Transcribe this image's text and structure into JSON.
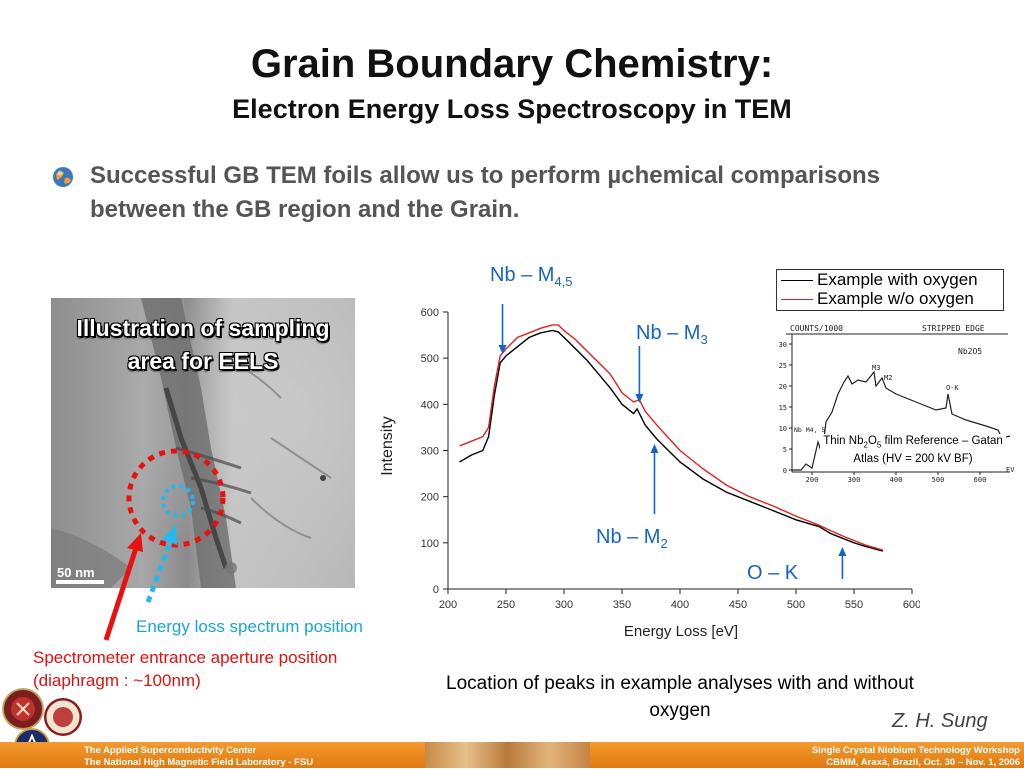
{
  "slide": {
    "title": "Grain Boundary Chemistry:",
    "subtitle": "Electron Energy Loss Spectroscopy in TEM",
    "bullet": "Successful  GB TEM foils allow us to perform µchemical comparisons between the GB region and the Grain."
  },
  "tem_image": {
    "caption": "Illustration of sampling area for EELS",
    "scale_bar": "50 nm",
    "energy_note": "Energy loss spectrum position",
    "aperture_note": "Spectrometer entrance aperture position (diaphragm : ~100nm)"
  },
  "peaks": {
    "m45_main": "Nb – M",
    "m45_sub": "4,5",
    "m3_main": "Nb – M",
    "m3_sub": "3",
    "m2_main": "Nb – M",
    "m2_sub": "2",
    "ok": "O – K"
  },
  "legend": {
    "with_oxygen": "Example with oxygen",
    "without_oxygen": "Example w/o oxygen"
  },
  "reference": {
    "header_left": "COUNTS/1000",
    "header_right": "STRIPPED EDGE",
    "compound": "Nb2O5",
    "label_m3": "M3",
    "label_m2": "M2",
    "label_ok": "O-K",
    "label_m45": "Nb M4, 5",
    "y_ticks": [
      "30",
      "25",
      "20",
      "15",
      "10",
      "5",
      "0"
    ],
    "x_ticks": [
      "200",
      "300",
      "400",
      "500",
      "600"
    ],
    "x_unit": "EV",
    "caption_prefix": "Thin Nb",
    "caption_sub1": "2",
    "caption_mid": "O",
    "caption_sub2": "5",
    "caption_suffix": " film Reference – Gatan Atlas (HV = 200 kV BF)"
  },
  "location_note": "Location of peaks in example analyses with and without oxygen",
  "author": "Z. H. Sung",
  "footer": {
    "left_line1": "The Applied Superconductivity Center",
    "left_line2": "The National High Magnetic Field Laboratory - FSU",
    "right_line1": "Single Crystal Niobium Technology Workshop",
    "right_line2": "CBMM, Araxá, Brazil, Oct. 30 – Nov. 1, 2006"
  },
  "colors": {
    "peak_label": "#1464c8",
    "series_with_oxygen": "#000000",
    "series_without_oxygen": "#e02020",
    "energy_note": "#1aa3d9",
    "aperture_note": "#e01010",
    "footer": "#f0901e"
  },
  "chart_data": {
    "type": "line",
    "xlabel": "Energy Loss [eV]",
    "ylabel": "Intensity",
    "xlim": [
      200,
      600
    ],
    "ylim": [
      0,
      600
    ],
    "x_ticks": [
      200,
      250,
      300,
      350,
      400,
      450,
      500,
      550,
      600
    ],
    "y_ticks": [
      0,
      100,
      200,
      300,
      400,
      500,
      600
    ],
    "legend_position": "top-right",
    "series": [
      {
        "name": "Example with oxygen",
        "color": "#000000",
        "x": [
          210,
          220,
          230,
          235,
          240,
          245,
          250,
          260,
          270,
          280,
          290,
          295,
          300,
          310,
          320,
          330,
          340,
          350,
          360,
          363,
          370,
          380,
          400,
          420,
          440,
          460,
          480,
          500,
          520,
          530,
          540,
          550,
          560,
          575
        ],
        "y": [
          275,
          290,
          300,
          330,
          420,
          490,
          505,
          525,
          545,
          555,
          560,
          557,
          545,
          520,
          495,
          465,
          435,
          400,
          380,
          390,
          355,
          325,
          275,
          238,
          210,
          190,
          170,
          150,
          135,
          120,
          110,
          100,
          92,
          82
        ]
      },
      {
        "name": "Example w/o oxygen",
        "color": "#e02020",
        "x": [
          210,
          220,
          230,
          235,
          240,
          245,
          250,
          260,
          270,
          280,
          290,
          295,
          300,
          310,
          320,
          330,
          340,
          350,
          360,
          365,
          370,
          380,
          400,
          420,
          440,
          460,
          480,
          500,
          520,
          530,
          540,
          550,
          560,
          575
        ],
        "y": [
          310,
          320,
          330,
          350,
          440,
          505,
          520,
          545,
          555,
          565,
          572,
          572,
          560,
          540,
          515,
          490,
          465,
          425,
          405,
          410,
          385,
          355,
          300,
          260,
          225,
          200,
          180,
          158,
          138,
          126,
          115,
          105,
          95,
          84
        ]
      }
    ],
    "annotations": [
      "Nb – M4,5",
      "Nb – M3",
      "Nb – M2",
      "O – K"
    ]
  }
}
